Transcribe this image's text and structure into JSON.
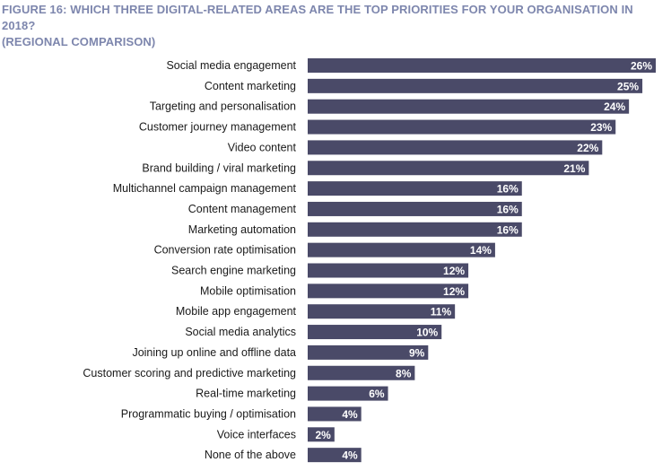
{
  "title_line1": "FIGURE 16: WHICH THREE DIGITAL-RELATED AREAS ARE THE TOP PRIORITIES FOR YOUR ORGANISATION IN 2018?",
  "title_line2": "(REGIONAL COMPARISON)",
  "colors": {
    "bar": "#4a4a68",
    "title": "#7d86ad",
    "value_text": "#ffffff"
  },
  "chart_data": {
    "type": "bar",
    "orientation": "horizontal",
    "title": "FIGURE 16: WHICH THREE DIGITAL-RELATED AREAS ARE THE TOP PRIORITIES FOR YOUR ORGANISATION IN 2018? (REGIONAL COMPARISON)",
    "categories": [
      "Social media engagement",
      "Content marketing",
      "Targeting and personalisation",
      "Customer journey management",
      "Video content",
      "Brand building / viral marketing",
      "Multichannel campaign management",
      "Content management",
      "Marketing automation",
      "Conversion rate optimisation",
      "Search engine marketing",
      "Mobile optimisation",
      "Mobile app engagement",
      "Social media analytics",
      "Joining up online and offline data",
      "Customer scoring and predictive marketing",
      "Real-time marketing",
      "Programmatic buying / optimisation",
      "Voice interfaces",
      "None of the above"
    ],
    "values": [
      26,
      25,
      24,
      23,
      22,
      21,
      16,
      16,
      16,
      14,
      12,
      12,
      11,
      10,
      9,
      8,
      6,
      4,
      2,
      4
    ],
    "value_labels": [
      "26%",
      "25%",
      "24%",
      "23%",
      "22%",
      "21%",
      "16%",
      "16%",
      "16%",
      "14%",
      "12%",
      "12%",
      "11%",
      "10%",
      "9%",
      "8%",
      "6%",
      "4%",
      "2%",
      "4%"
    ],
    "unit": "%",
    "xlim": [
      0,
      26
    ],
    "grid": false,
    "legend": "none"
  }
}
